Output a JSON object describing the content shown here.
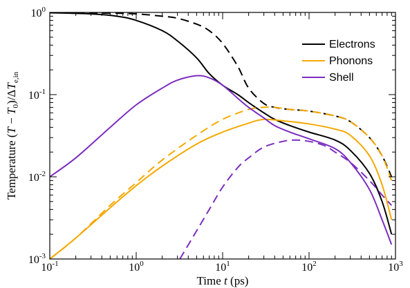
{
  "chart_data": {
    "type": "line",
    "xscale": "log",
    "yscale": "log",
    "xlim": [
      0.1,
      1000
    ],
    "ylim": [
      0.001,
      1
    ],
    "xlabel": "Time t (ps)",
    "ylabel": "Temperature (T − T0)/ΔTe,in",
    "grid": false,
    "legend_position": "top-right",
    "x_ticks": [
      {
        "base": "10",
        "exp": "-1",
        "value": 0.1
      },
      {
        "base": "10",
        "exp": "0",
        "value": 1
      },
      {
        "base": "10",
        "exp": "1",
        "value": 10
      },
      {
        "base": "10",
        "exp": "2",
        "value": 100
      },
      {
        "base": "10",
        "exp": "3",
        "value": 1000
      }
    ],
    "y_ticks": [
      {
        "base": "10",
        "exp": "-3",
        "value": 0.001
      },
      {
        "base": "10",
        "exp": "-2",
        "value": 0.01
      },
      {
        "base": "10",
        "exp": "-1",
        "value": 0.1
      },
      {
        "base": "10",
        "exp": "0",
        "value": 1
      }
    ],
    "series": [
      {
        "name": "Electrons",
        "color": "#000000",
        "style": "solid",
        "x": [
          0.1,
          0.3,
          0.6,
          1,
          2,
          3,
          5,
          7,
          10,
          15,
          20,
          30,
          40,
          60,
          100,
          200,
          300,
          500,
          700,
          900
        ],
        "y": [
          0.99,
          0.96,
          0.9,
          0.8,
          0.6,
          0.45,
          0.28,
          0.18,
          0.13,
          0.1,
          0.08,
          0.06,
          0.05,
          0.042,
          0.035,
          0.028,
          0.021,
          0.011,
          0.005,
          0.002
        ]
      },
      {
        "name": "",
        "color": "#000000",
        "style": "dashed",
        "x": [
          0.1,
          0.5,
          1,
          2,
          3,
          5,
          7,
          10,
          15,
          20,
          30,
          40,
          60,
          100,
          200,
          300,
          500,
          700,
          900
        ],
        "y": [
          1.0,
          0.98,
          0.96,
          0.9,
          0.85,
          0.72,
          0.6,
          0.42,
          0.22,
          0.12,
          0.078,
          0.07,
          0.066,
          0.063,
          0.055,
          0.047,
          0.03,
          0.018,
          0.01
        ]
      },
      {
        "name": "Phonons",
        "color": "#f5a800",
        "style": "solid",
        "x": [
          0.1,
          0.2,
          0.5,
          1,
          2,
          5,
          10,
          20,
          30,
          50,
          100,
          200,
          300,
          500,
          700,
          900
        ],
        "y": [
          0.001,
          0.0018,
          0.0042,
          0.0078,
          0.0135,
          0.025,
          0.035,
          0.045,
          0.05,
          0.048,
          0.044,
          0.038,
          0.032,
          0.018,
          0.008,
          0.003
        ]
      },
      {
        "name": "",
        "color": "#f5a800",
        "style": "dashed",
        "x": [
          0.1,
          0.2,
          0.5,
          1,
          2,
          5,
          10,
          20,
          30,
          40,
          60,
          100,
          200,
          300,
          500,
          700,
          900
        ],
        "y": [
          0.001,
          0.0018,
          0.0045,
          0.0085,
          0.016,
          0.032,
          0.05,
          0.066,
          0.07,
          0.07,
          0.066,
          0.063,
          0.055,
          0.047,
          0.03,
          0.018,
          0.009
        ]
      },
      {
        "name": "Shell",
        "color": "#7b2cbf",
        "style": "solid",
        "x": [
          0.1,
          0.2,
          0.5,
          1,
          2,
          3,
          5,
          7,
          10,
          15,
          20,
          30,
          40,
          60,
          100,
          200,
          300,
          500,
          700,
          900
        ],
        "y": [
          0.01,
          0.017,
          0.04,
          0.075,
          0.12,
          0.15,
          0.17,
          0.16,
          0.13,
          0.09,
          0.07,
          0.052,
          0.042,
          0.035,
          0.029,
          0.022,
          0.015,
          0.007,
          0.003,
          0.0015
        ]
      },
      {
        "name": "",
        "color": "#7b2cbf",
        "style": "dashed",
        "x": [
          3.2,
          5,
          7,
          10,
          15,
          20,
          30,
          50,
          70,
          100,
          150,
          200,
          300,
          500,
          700,
          900
        ],
        "y": [
          0.001,
          0.0022,
          0.004,
          0.0075,
          0.013,
          0.017,
          0.023,
          0.027,
          0.028,
          0.027,
          0.024,
          0.02,
          0.015,
          0.009,
          0.006,
          0.0045
        ]
      }
    ]
  }
}
